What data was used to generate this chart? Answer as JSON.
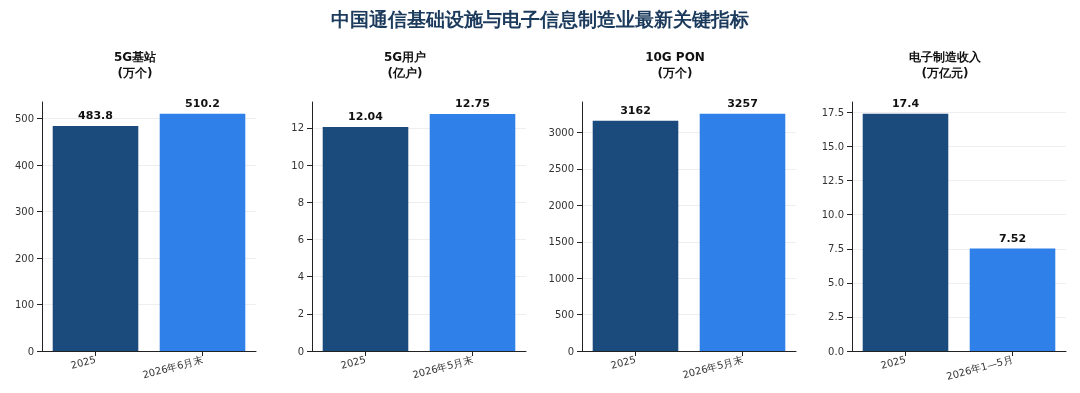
{
  "chart_data": [
    {
      "type": "bar",
      "title": "5G基站\n(万个)",
      "annotations": [
        "中国通信基础设施与电子信息制造业最新关键指标"
      ],
      "categories": [
        "2025",
        "2026年6月末"
      ],
      "values": [
        483.8,
        510.2
      ],
      "colors": [
        "#1b4a7c",
        "#2f80e8"
      ],
      "ylim": [
        0,
        535.7
      ],
      "yticks": [
        0,
        100,
        200,
        300,
        400,
        500
      ],
      "grid": "y",
      "data_labels": true
    },
    {
      "type": "bar",
      "title": "5G用户\n(亿户)",
      "categories": [
        "2025",
        "2026年5月末"
      ],
      "values": [
        12.04,
        12.75
      ],
      "colors": [
        "#1b4a7c",
        "#2f80e8"
      ],
      "ylim": [
        0,
        13.39
      ],
      "yticks": [
        0,
        2,
        4,
        6,
        8,
        10,
        12
      ],
      "grid": "y",
      "data_labels": true
    },
    {
      "type": "bar",
      "title": "10G PON\n(万个)",
      "categories": [
        "2025",
        "2026年5月末"
      ],
      "values": [
        3162,
        3257
      ],
      "colors": [
        "#1b4a7c",
        "#2f80e8"
      ],
      "ylim": [
        0,
        3420
      ],
      "yticks": [
        0,
        500,
        1000,
        1500,
        2000,
        2500,
        3000
      ],
      "grid": "y",
      "data_labels": true
    },
    {
      "type": "bar",
      "title": "电子制造收入\n(万亿元)",
      "categories": [
        "2025",
        "2026年1—5月"
      ],
      "values": [
        17.4,
        7.52
      ],
      "colors": [
        "#1b4a7c",
        "#2f80e8"
      ],
      "ylim": [
        0,
        18.27
      ],
      "yticks": [
        {
          "value": 0,
          "label": "0.0"
        },
        {
          "value": 2.5,
          "label": "2.5"
        },
        {
          "value": 5,
          "label": "5.0"
        },
        {
          "value": 7.5,
          "label": "7.5"
        },
        {
          "value": 10,
          "label": "10.0"
        },
        {
          "value": 12.5,
          "label": "12.5"
        },
        {
          "value": 15,
          "label": "15.0"
        },
        {
          "value": 17.5,
          "label": "17.5"
        }
      ],
      "grid": "y",
      "data_labels": true
    }
  ]
}
